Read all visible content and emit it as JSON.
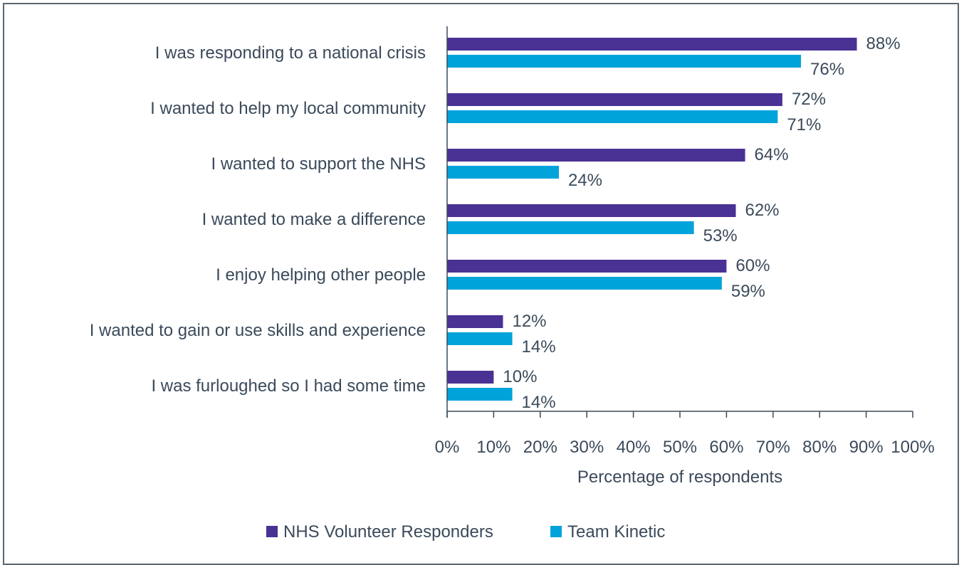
{
  "chart_data": {
    "type": "bar",
    "orientation": "horizontal",
    "categories": [
      "I was responding to a national crisis",
      "I wanted to help my local community",
      "I wanted to support the NHS",
      "I wanted to make a difference",
      "I enjoy helping other people",
      "I wanted to gain or use skills and experience",
      "I was furloughed so I had some time"
    ],
    "series": [
      {
        "name": "NHS Volunteer Responders",
        "color": "#4a3194",
        "values": [
          88,
          72,
          64,
          62,
          60,
          12,
          10
        ],
        "labels": [
          "88%",
          "72%",
          "64%",
          "62%",
          "60%",
          "12%",
          "10%"
        ]
      },
      {
        "name": "Team Kinetic",
        "color": "#00a3da",
        "values": [
          76,
          71,
          24,
          53,
          59,
          14,
          14
        ],
        "labels": [
          "76%",
          "71%",
          "24%",
          "53%",
          "59%",
          "14%",
          "14%"
        ]
      }
    ],
    "xlabel": "Percentage of respondents",
    "xlim": [
      0,
      100
    ],
    "xticks": [
      "0%",
      "10%",
      "20%",
      "30%",
      "40%",
      "50%",
      "60%",
      "70%",
      "80%",
      "90%",
      "100%"
    ],
    "grid": false,
    "legend_position": "bottom"
  }
}
